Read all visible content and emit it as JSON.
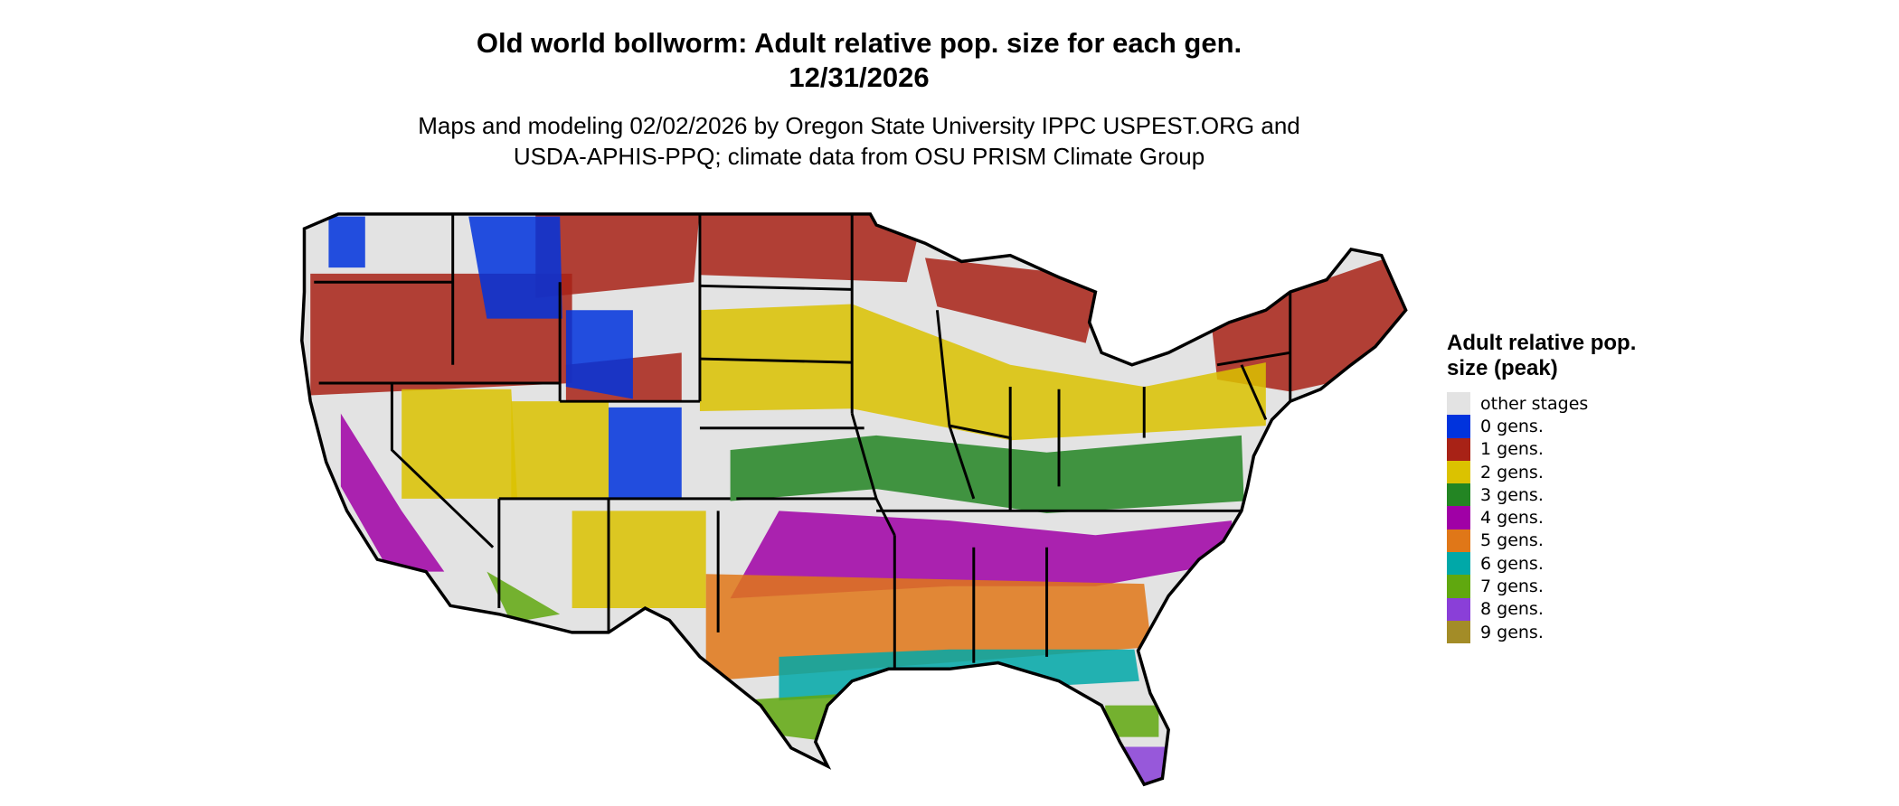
{
  "title": {
    "line1": "Old world bollworm: Adult relative pop. size for each gen.",
    "line2": "12/31/2026",
    "subtitle1": "Maps and modeling 02/02/2026 by Oregon State University IPPC USPEST.ORG and",
    "subtitle2": "USDA-APHIS-PPQ; climate data from OSU PRISM Climate Group"
  },
  "legend": {
    "title": "Adult relative pop. size (peak)",
    "items": [
      {
        "label": "other stages",
        "color": "#e3e3e3"
      },
      {
        "label": "0 gens.",
        "color": "#0033dd"
      },
      {
        "label": "1 gens.",
        "color": "#a82216"
      },
      {
        "label": "2 gens.",
        "color": "#dbc200"
      },
      {
        "label": "3 gens.",
        "color": "#238523"
      },
      {
        "label": "4 gens.",
        "color": "#a000a6"
      },
      {
        "label": "5 gens.",
        "color": "#e07718"
      },
      {
        "label": "6 gens.",
        "color": "#00a8a8"
      },
      {
        "label": "7 gens.",
        "color": "#60a80f"
      },
      {
        "label": "8 gens.",
        "color": "#8a3fd8"
      },
      {
        "label": "9 gens.",
        "color": "#a38c27"
      }
    ]
  },
  "map": {
    "region": "Contiguous United States",
    "background_color": "#e3e3e3",
    "border_color": "#000000"
  }
}
